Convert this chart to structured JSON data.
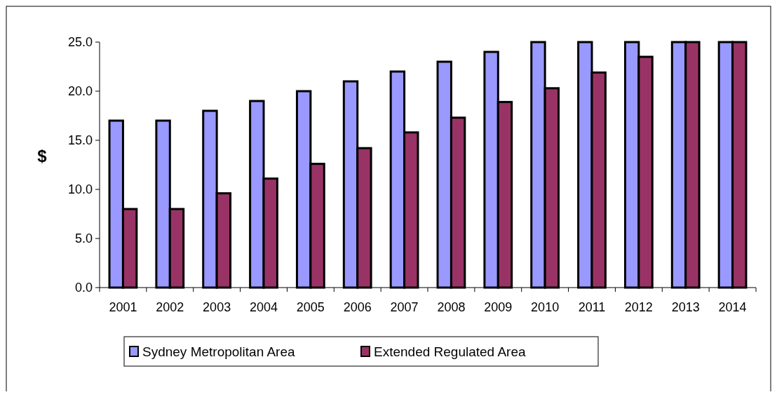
{
  "chart_data": {
    "type": "bar",
    "ylabel": "$",
    "categories": [
      "2001",
      "2002",
      "2003",
      "2004",
      "2005",
      "2006",
      "2007",
      "2008",
      "2009",
      "2010",
      "2011",
      "2012",
      "2013",
      "2014"
    ],
    "series": [
      {
        "name": "Sydney Metropolitan Area",
        "color": "#9999ff",
        "values": [
          17,
          17,
          18,
          19,
          20,
          21,
          22,
          23,
          24,
          25,
          25,
          25,
          25,
          25
        ]
      },
      {
        "name": "Extended Regulated Area",
        "color": "#993366",
        "values": [
          8.0,
          8.0,
          9.6,
          11.1,
          12.6,
          14.2,
          15.8,
          17.3,
          18.9,
          20.3,
          21.9,
          23.5,
          25,
          25
        ]
      }
    ],
    "ylim": [
      0,
      25
    ],
    "yticks": [
      {
        "value": 0,
        "label": "0.0"
      },
      {
        "value": 5,
        "label": "5.0"
      },
      {
        "value": 10,
        "label": "10.0"
      },
      {
        "value": 15,
        "label": "15.0"
      },
      {
        "value": 20,
        "label": "20.0"
      },
      {
        "value": 25,
        "label": "25.0"
      }
    ],
    "grid": false,
    "legend": "bottom"
  }
}
